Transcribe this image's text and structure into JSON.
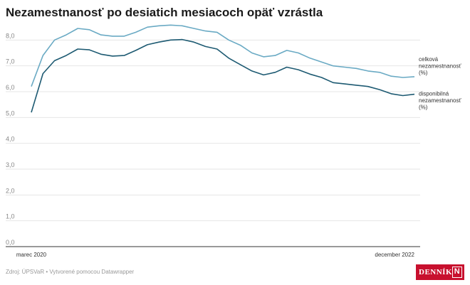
{
  "title": "Nezamestnanosť po desiatich mesiacoch opäť vzrástla",
  "footer": {
    "text": "Zdroj: ÚPSVaR • Vytvorené pomocou Datawrapper"
  },
  "logo": {
    "text": "DENNÍK",
    "mark": "N"
  },
  "chart_data": {
    "type": "line",
    "x_labels_shown": [
      "marec 2020",
      "december 2022"
    ],
    "x_start": "2020-03",
    "x_end": "2022-12",
    "y_ticks": [
      "0,0",
      "1,0",
      "2,0",
      "3,0",
      "4,0",
      "5,0",
      "6,0",
      "7,0",
      "8,0"
    ],
    "ylim": [
      0,
      9
    ],
    "grid": true,
    "series": [
      {
        "name": "celková nezamestnanosť (%)",
        "label_lines": [
          "celková",
          "nezamestnanosť",
          "(%)"
        ],
        "color": "#6aaac4",
        "values": [
          6.2,
          7.4,
          8.0,
          8.2,
          8.45,
          8.4,
          8.2,
          8.15,
          8.15,
          8.3,
          8.5,
          8.55,
          8.58,
          8.55,
          8.45,
          8.35,
          8.3,
          8.0,
          7.8,
          7.5,
          7.35,
          7.4,
          7.6,
          7.5,
          7.3,
          7.15,
          7.0,
          6.95,
          6.9,
          6.8,
          6.75,
          6.6,
          6.55,
          6.58
        ]
      },
      {
        "name": "disponibilná nezamestnanosť (%)",
        "label_lines": [
          "disponibilná",
          "nezamestnanosť",
          "(%)"
        ],
        "color": "#1d5a72",
        "values": [
          5.2,
          6.7,
          7.2,
          7.4,
          7.65,
          7.62,
          7.45,
          7.38,
          7.4,
          7.6,
          7.82,
          7.92,
          8.0,
          8.02,
          7.92,
          7.75,
          7.65,
          7.3,
          7.05,
          6.8,
          6.65,
          6.75,
          6.95,
          6.85,
          6.68,
          6.55,
          6.35,
          6.3,
          6.25,
          6.2,
          6.08,
          5.92,
          5.85,
          5.9
        ]
      }
    ]
  }
}
